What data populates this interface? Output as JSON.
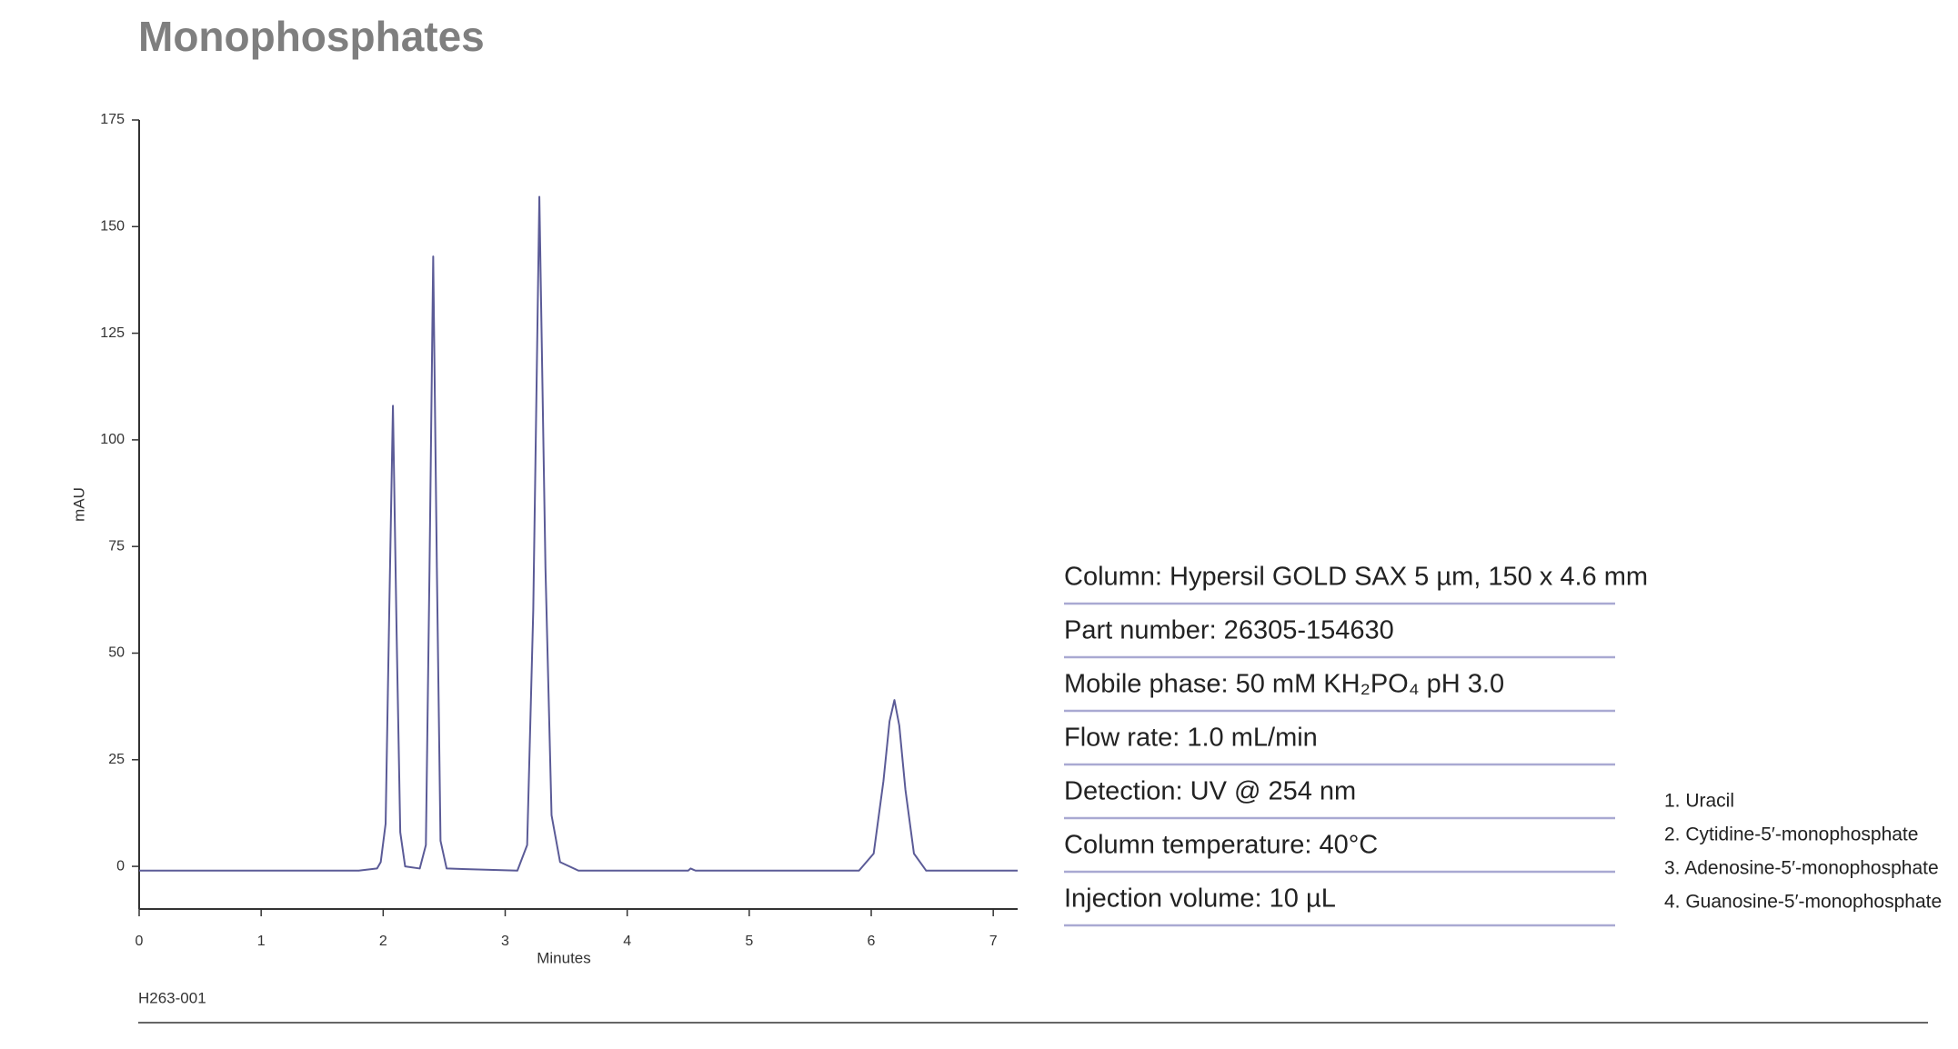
{
  "chart_data": {
    "type": "line",
    "title": "Monophosphates",
    "y_label": "mAU",
    "x_label": "Minutes",
    "x": [
      0,
      1.8,
      1.95,
      1.98,
      2.02,
      2.05,
      2.08,
      2.11,
      2.14,
      2.18,
      2.3,
      2.35,
      2.38,
      2.41,
      2.44,
      2.47,
      2.52,
      3.1,
      3.18,
      3.23,
      3.28,
      3.33,
      3.38,
      3.45,
      3.6,
      4.5,
      4.52,
      4.56,
      5.9,
      6.02,
      6.1,
      6.15,
      6.19,
      6.23,
      6.28,
      6.35,
      6.45,
      7.2
    ],
    "series": [
      {
        "color": "#5b5b97",
        "values": [
          -1,
          -1,
          -0.5,
          1,
          10,
          60,
          108,
          55,
          8,
          0,
          -0.5,
          5,
          70,
          143,
          70,
          6,
          -0.5,
          -1,
          5,
          60,
          157,
          70,
          12,
          1,
          -1,
          -1,
          -0.5,
          -1,
          -1,
          3,
          20,
          34,
          39,
          33,
          18,
          3,
          -1,
          -1
        ]
      }
    ],
    "xlim": [
      0,
      7.2
    ],
    "xticks": [
      0,
      1,
      2,
      3,
      4,
      5,
      6,
      7
    ],
    "ylim": [
      -10,
      175
    ],
    "yticks": [
      0,
      25,
      50,
      75,
      100,
      125,
      150,
      175
    ]
  },
  "conditions": [
    "Column: Hypersil GOLD SAX 5 µm, 150 x 4.6 mm",
    "Part number: 26305-154630",
    "Mobile phase: 50 mM KH₂PO₄ pH 3.0",
    "Flow rate: 1.0 mL/min",
    "Detection: UV @ 254 nm",
    "Column temperature: 40°C",
    "Injection volume: 10 µL"
  ],
  "peaks": [
    "1. Uracil",
    "2.  Cytidine-5′-monophosphate",
    "3. Adenosine-5′-monophosphate",
    "4. Guanosine-5′-monophosphate"
  ],
  "footer": "H263-001"
}
